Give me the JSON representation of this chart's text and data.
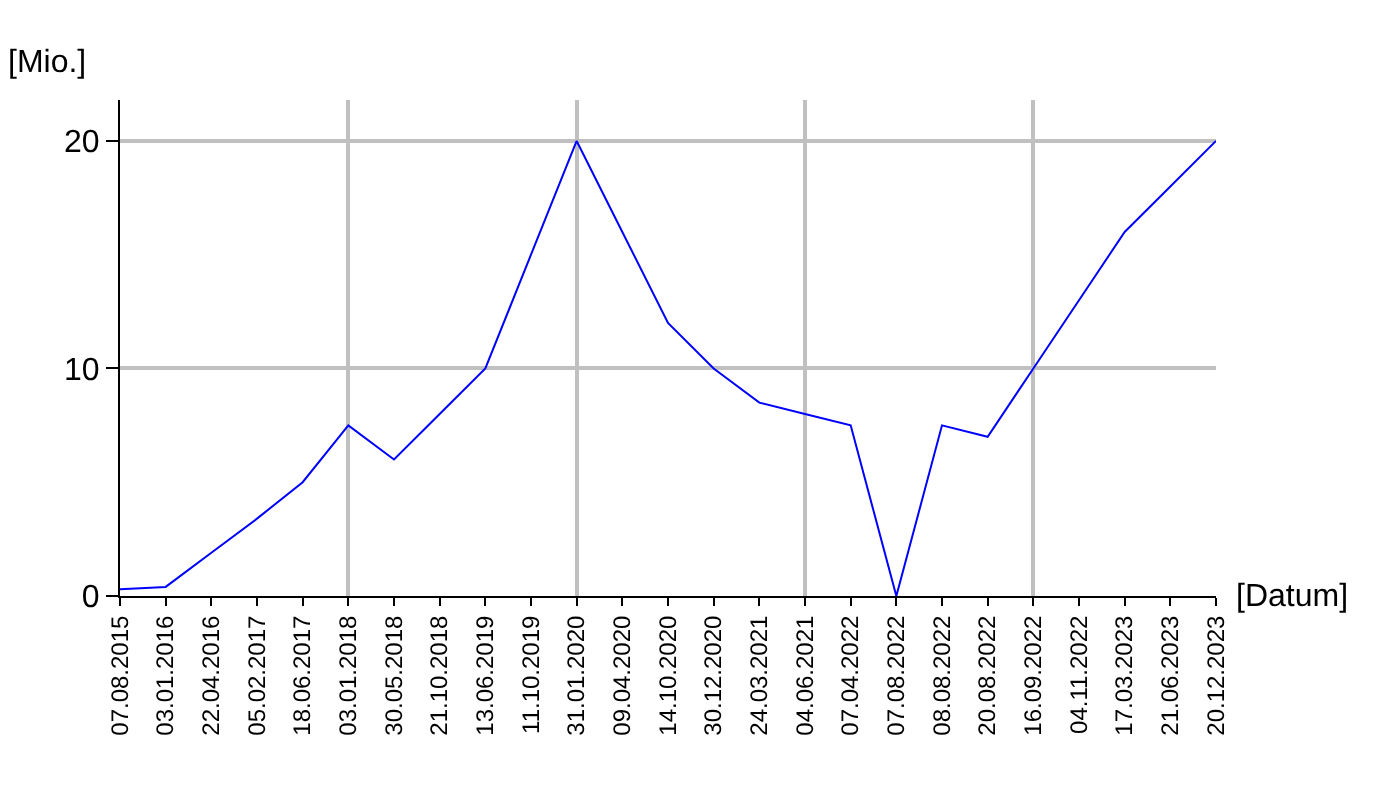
{
  "chart_data": {
    "type": "line",
    "ylabel": "[Mio.]",
    "xlabel": "[Datum]",
    "categories": [
      "07.08.2015",
      "03.01.2016",
      "22.04.2016",
      "05.02.2017",
      "18.06.2017",
      "03.01.2018",
      "30.05.2018",
      "21.10.2018",
      "13.06.2019",
      "11.10.2019",
      "31.01.2020",
      "09.04.2020",
      "14.10.2020",
      "30.12.2020",
      "24.03.2021",
      "04.06.2021",
      "07.04.2022",
      "07.08.2022",
      "08.08.2022",
      "20.08.2022",
      "16.09.2022",
      "04.11.2022",
      "17.03.2023",
      "21.06.2023",
      "20.12.2023"
    ],
    "series": [
      {
        "color": "#0000ff",
        "values": [
          0.3,
          0.4,
          1.9,
          3.4,
          5,
          7.5,
          6,
          8,
          10,
          15,
          20,
          16,
          12,
          10,
          8.5,
          8,
          7.5,
          0,
          7.5,
          7,
          10,
          13,
          16,
          18,
          20
        ]
      }
    ],
    "ylim": [
      0,
      21.8
    ],
    "yticks": [
      0,
      10,
      20
    ],
    "grid": true,
    "marker": "none",
    "line_style": "solid"
  }
}
